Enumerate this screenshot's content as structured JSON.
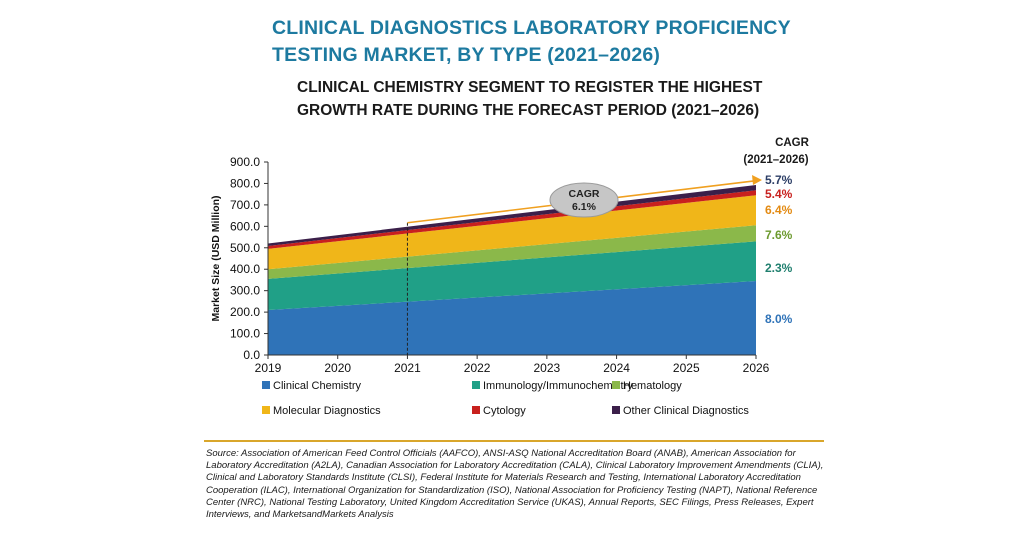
{
  "header": {
    "title": "CLINICAL DIAGNOSTICS LABORATORY PROFICIENCY TESTING MARKET, BY TYPE (2021–2026)",
    "subtitle": "CLINICAL CHEMISTRY SEGMENT TO REGISTER THE HIGHEST GROWTH RATE DURING THE FORECAST PERIOD (2021–2026)"
  },
  "chart_data": {
    "type": "area",
    "stacked": true,
    "x": [
      2019,
      2026
    ],
    "xticks": [
      "2019",
      "2020",
      "2021",
      "2022",
      "2023",
      "2024",
      "2025",
      "2026"
    ],
    "ylabel": "Market Size (USD Million)",
    "ylim": [
      0,
      900
    ],
    "yticks": [
      "0.0",
      "100.0",
      "200.0",
      "300.0",
      "400.0",
      "500.0",
      "600.0",
      "700.0",
      "800.0",
      "900.0"
    ],
    "grid": false,
    "legend_position": "bottom",
    "series": [
      {
        "name": "Clinical Chemistry",
        "values": [
          210,
          345
        ],
        "color": "#2f73b8",
        "cagr": "8.0%",
        "cagr_color": "#2f73b8"
      },
      {
        "name": "Immunology/Immunochemistry",
        "values": [
          145,
          185
        ],
        "color": "#20a087",
        "cagr": "2.3%",
        "cagr_color": "#1f7f6e"
      },
      {
        "name": "Hematology",
        "values": [
          45,
          75
        ],
        "color": "#8bb84a",
        "cagr": "7.6%",
        "cagr_color": "#6c9a2e"
      },
      {
        "name": "Molecular Diagnostics",
        "values": [
          95,
          140
        ],
        "color": "#f0b619",
        "cagr": "6.4%",
        "cagr_color": "#e38a12"
      },
      {
        "name": "Cytology",
        "values": [
          13,
          23
        ],
        "color": "#c8201e",
        "cagr": "5.4%",
        "cagr_color": "#c8201e"
      },
      {
        "name": "Other Clinical Diagnostics",
        "values": [
          12,
          25
        ],
        "color": "#3b1f4a",
        "cagr": "5.7%",
        "cagr_color": "#2c3e66"
      }
    ],
    "annotations": {
      "cagr_header_line1": "CAGR",
      "cagr_header_line2": "(2021–2026)",
      "bubble_line1": "CAGR",
      "bubble_line2": "6.1%",
      "marker_year": 2021,
      "arrow_color": "#f0a020"
    }
  },
  "source": "Source: Association of American Feed Control Officials (AAFCO), ANSI-ASQ National Accreditation Board (ANAB), American Association for Laboratory Accreditation (A2LA), Canadian Association for Laboratory Accreditation (CALA), Clinical Laboratory Improvement Amendments (CLIA), Clinical and Laboratory Standards Institute (CLSI), Federal Institute for Materials Research and Testing, International Laboratory Accreditation Cooperation (ILAC), International Organization for Standardization (ISO), National Association for Proficiency Testing (NAPT), National Reference Center (NRC), National Testing Laboratory, United Kingdom Accreditation Service (UKAS), Annual Reports, SEC Filings, Press Releases, Expert Interviews, and MarketsandMarkets Analysis"
}
